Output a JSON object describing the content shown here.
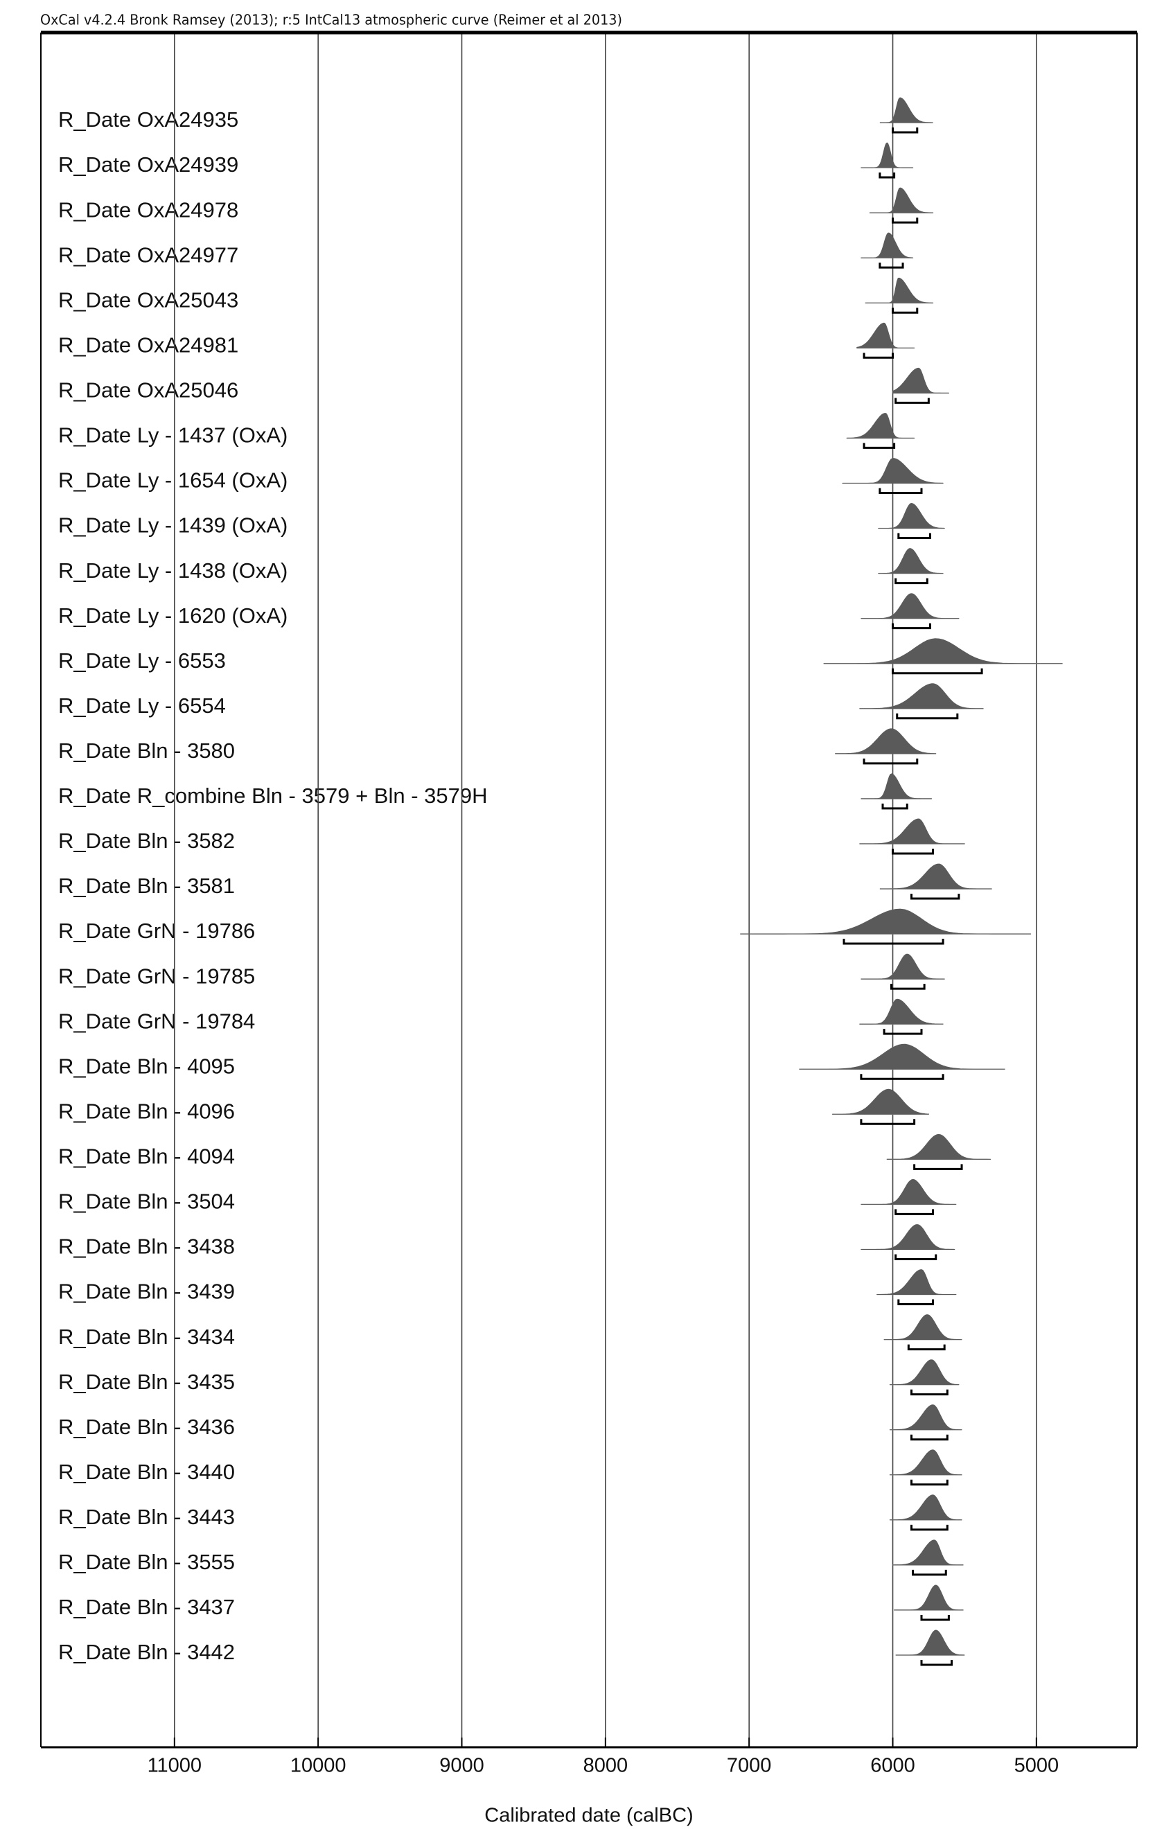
{
  "chart_data": {
    "type": "multiplot",
    "title": "OxCal v4.2.4 Bronk Ramsey (2013); r:5 IntCal13 atmospheric curve (Reimer et al 2013)",
    "x_label": "Calibrated date (calBC)",
    "xlim": [
      11930,
      4300
    ],
    "xticks": [
      11000,
      10000,
      9000,
      8000,
      7000,
      6000,
      5000
    ],
    "grid": true,
    "color": "#5a5a5a",
    "rows": [
      {
        "label": "R_Date OxA24935",
        "extent": [
          6090,
          5720
        ],
        "range": [
          6000,
          5830
        ],
        "peak": 5950
      },
      {
        "label": "R_Date OxA24939",
        "extent": [
          6220,
          5860
        ],
        "range": [
          6090,
          5990
        ],
        "peak": 6040
      },
      {
        "label": "R_Date OxA24978",
        "extent": [
          6160,
          5720
        ],
        "range": [
          6000,
          5830
        ],
        "peak": 5950
      },
      {
        "label": "R_Date OxA24977",
        "extent": [
          6220,
          5860
        ],
        "range": [
          6090,
          5930
        ],
        "peak": 6030
      },
      {
        "label": "R_Date OxA25043",
        "extent": [
          6190,
          5720
        ],
        "range": [
          6000,
          5830
        ],
        "peak": 5960
      },
      {
        "label": "R_Date OxA24981",
        "extent": [
          6250,
          5850
        ],
        "range": [
          6200,
          6000
        ],
        "peak": 6060
      },
      {
        "label": "R_Date OxA25046",
        "extent": [
          6000,
          5610
        ],
        "range": [
          5980,
          5750
        ],
        "peak": 5820
      },
      {
        "label": "R_Date Ly - 1437 (OxA)",
        "extent": [
          6320,
          5850
        ],
        "range": [
          6200,
          5990
        ],
        "peak": 6050
      },
      {
        "label": "R_Date Ly - 1654 (OxA)",
        "extent": [
          6350,
          5650
        ],
        "range": [
          6090,
          5800
        ],
        "peak": 6000
      },
      {
        "label": "R_Date Ly - 1439 (OxA)",
        "extent": [
          6100,
          5640
        ],
        "range": [
          5960,
          5740
        ],
        "peak": 5870
      },
      {
        "label": "R_Date Ly - 1438 (OxA)",
        "extent": [
          6100,
          5650
        ],
        "range": [
          5980,
          5760
        ],
        "peak": 5880
      },
      {
        "label": "R_Date Ly - 1620 (OxA)",
        "extent": [
          6220,
          5540
        ],
        "range": [
          6000,
          5740
        ],
        "peak": 5870
      },
      {
        "label": "R_Date Ly - 6553",
        "extent": [
          6480,
          4820
        ],
        "range": [
          6000,
          5380
        ],
        "peak": 5700
      },
      {
        "label": "R_Date Ly - 6554",
        "extent": [
          6230,
          5370
        ],
        "range": [
          5970,
          5550
        ],
        "peak": 5720
      },
      {
        "label": "R_Date Bln - 3580",
        "extent": [
          6400,
          5700
        ],
        "range": [
          6200,
          5830
        ],
        "peak": 6010
      },
      {
        "label": "R_Date R_combine Bln - 3579 + Bln - 3579H",
        "extent": [
          6220,
          5730
        ],
        "range": [
          6070,
          5900
        ],
        "peak": 6010
      },
      {
        "label": "R_Date Bln - 3582",
        "extent": [
          6230,
          5500
        ],
        "range": [
          6000,
          5720
        ],
        "peak": 5820
      },
      {
        "label": "R_Date Bln - 3581",
        "extent": [
          6090,
          5310
        ],
        "range": [
          5870,
          5540
        ],
        "peak": 5680
      },
      {
        "label": "R_Date GrN - 19786",
        "extent": [
          7060,
          5040
        ],
        "range": [
          6340,
          5650
        ],
        "peak": 5950
      },
      {
        "label": "R_Date GrN - 19785",
        "extent": [
          6220,
          5640
        ],
        "range": [
          6010,
          5780
        ],
        "peak": 5900
      },
      {
        "label": "R_Date GrN - 19784",
        "extent": [
          6230,
          5650
        ],
        "range": [
          6060,
          5800
        ],
        "peak": 5970
      },
      {
        "label": "R_Date Bln - 4095",
        "extent": [
          6650,
          5220
        ],
        "range": [
          6220,
          5650
        ],
        "peak": 5920
      },
      {
        "label": "R_Date Bln - 4096",
        "extent": [
          6420,
          5750
        ],
        "range": [
          6220,
          5850
        ],
        "peak": 6030
      },
      {
        "label": "R_Date Bln - 4094",
        "extent": [
          6040,
          5320
        ],
        "range": [
          5850,
          5520
        ],
        "peak": 5680
      },
      {
        "label": "R_Date Bln - 3504",
        "extent": [
          6220,
          5560
        ],
        "range": [
          5980,
          5720
        ],
        "peak": 5860
      },
      {
        "label": "R_Date Bln - 3438",
        "extent": [
          6220,
          5570
        ],
        "range": [
          5980,
          5700
        ],
        "peak": 5830
      },
      {
        "label": "R_Date Bln - 3439",
        "extent": [
          6110,
          5560
        ],
        "range": [
          5960,
          5720
        ],
        "peak": 5800
      },
      {
        "label": "R_Date Bln - 3434",
        "extent": [
          6060,
          5520
        ],
        "range": [
          5890,
          5640
        ],
        "peak": 5760
      },
      {
        "label": "R_Date Bln - 3435",
        "extent": [
          6020,
          5540
        ],
        "range": [
          5870,
          5620
        ],
        "peak": 5730
      },
      {
        "label": "R_Date Bln - 3436",
        "extent": [
          6020,
          5520
        ],
        "range": [
          5870,
          5620
        ],
        "peak": 5720
      },
      {
        "label": "R_Date Bln - 3440",
        "extent": [
          6020,
          5520
        ],
        "range": [
          5870,
          5620
        ],
        "peak": 5720
      },
      {
        "label": "R_Date Bln - 3443",
        "extent": [
          6020,
          5520
        ],
        "range": [
          5870,
          5620
        ],
        "peak": 5720
      },
      {
        "label": "R_Date Bln - 3555",
        "extent": [
          6000,
          5510
        ],
        "range": [
          5860,
          5630
        ],
        "peak": 5710
      },
      {
        "label": "R_Date Bln - 3437",
        "extent": [
          5990,
          5510
        ],
        "range": [
          5800,
          5610
        ],
        "peak": 5700
      },
      {
        "label": "R_Date Bln - 3442",
        "extent": [
          5980,
          5500
        ],
        "range": [
          5800,
          5590
        ],
        "peak": 5700
      }
    ]
  }
}
